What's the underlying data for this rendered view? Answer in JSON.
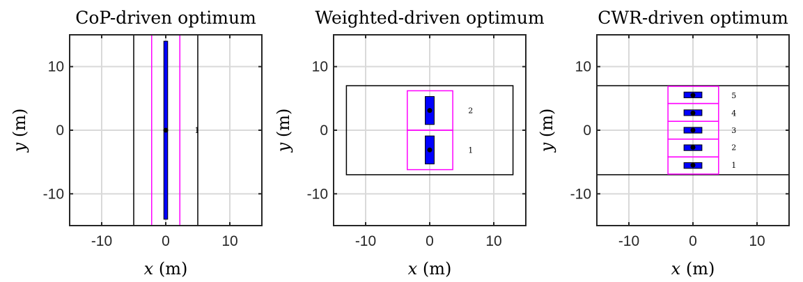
{
  "chart_data": [
    {
      "type": "scatter",
      "title": "CoP-driven optimum",
      "xlabel": {
        "var": "x",
        "unit": "(m)"
      },
      "ylabel": {
        "var": "y",
        "unit": "(m)"
      },
      "xlim": [
        -15,
        15
      ],
      "ylim": [
        -15,
        15
      ],
      "xticks": [
        -10,
        0,
        10
      ],
      "yticks": [
        -10,
        0,
        10
      ],
      "xtick_labels": [
        "-10",
        "0",
        "10"
      ],
      "ytick_labels": [
        "-10",
        "0",
        "10"
      ],
      "grid": true,
      "outer_rect": {
        "x": [
          -5,
          5
        ],
        "y": [
          -15,
          15
        ]
      },
      "rows": [
        {
          "label": "1",
          "cell": {
            "x": [
              -2.2,
              2.2
            ],
            "y": [
              -15,
              15
            ]
          },
          "bar": {
            "x": [
              -0.3,
              0.3
            ],
            "y": [
              -14,
              14
            ]
          },
          "point": [
            0,
            0
          ],
          "label_pos": [
            4.5,
            0
          ]
        }
      ]
    },
    {
      "type": "scatter",
      "title": "Weighted-driven optimum",
      "xlabel": {
        "var": "x",
        "unit": "(m)"
      },
      "ylabel": {
        "var": "y",
        "unit": "(m)"
      },
      "xlim": [
        -15,
        15
      ],
      "ylim": [
        -15,
        15
      ],
      "xticks": [
        -10,
        0,
        10
      ],
      "yticks": [
        -10,
        0,
        10
      ],
      "xtick_labels": [
        "-10",
        "0",
        "10"
      ],
      "ytick_labels": [
        "-10",
        "0",
        "10"
      ],
      "grid": true,
      "outer_rect": {
        "x": [
          -13,
          13
        ],
        "y": [
          -7,
          7
        ]
      },
      "rows": [
        {
          "label": "1",
          "cell": {
            "x": [
              -3.5,
              3.6
            ],
            "y": [
              -6.2,
              0
            ]
          },
          "bar": {
            "x": [
              -0.7,
              0.7
            ],
            "y": [
              -5.3,
              -0.9
            ]
          },
          "point": [
            0,
            -3.1
          ],
          "label_pos": [
            6,
            -3.1
          ]
        },
        {
          "label": "2",
          "cell": {
            "x": [
              -3.5,
              3.6
            ],
            "y": [
              0,
              6.2
            ]
          },
          "bar": {
            "x": [
              -0.7,
              0.7
            ],
            "y": [
              0.9,
              5.3
            ]
          },
          "point": [
            0,
            3.1
          ],
          "label_pos": [
            6,
            3.1
          ]
        }
      ]
    },
    {
      "type": "scatter",
      "title": "CWR-driven optimum",
      "xlabel": {
        "var": "x",
        "unit": "(m)"
      },
      "ylabel": {
        "var": "y",
        "unit": "(m)"
      },
      "xlim": [
        -15,
        15
      ],
      "ylim": [
        -15,
        15
      ],
      "xticks": [
        -10,
        0,
        10
      ],
      "yticks": [
        -10,
        0,
        10
      ],
      "xtick_labels": [
        "-10",
        "0",
        "10"
      ],
      "ytick_labels": [
        "-10",
        "0",
        "10"
      ],
      "grid": true,
      "outer_rect": {
        "x": [
          -15,
          15
        ],
        "y": [
          -7,
          7
        ]
      },
      "rows": [
        {
          "label": "1",
          "cell": {
            "x": [
              -3.9,
              4.0
            ],
            "y": [
              -6.9,
              -4.2
            ]
          },
          "bar": {
            "x": [
              -1.4,
              1.4
            ],
            "y": [
              -6.0,
              -5.1
            ]
          },
          "point": [
            0,
            -5.5
          ],
          "label_pos": [
            6,
            -5.5
          ]
        },
        {
          "label": "2",
          "cell": {
            "x": [
              -3.9,
              4.0
            ],
            "y": [
              -4.2,
              -1.4
            ]
          },
          "bar": {
            "x": [
              -1.4,
              1.4
            ],
            "y": [
              -3.2,
              -2.3
            ]
          },
          "point": [
            0,
            -2.7
          ],
          "label_pos": [
            6,
            -2.7
          ]
        },
        {
          "label": "3",
          "cell": {
            "x": [
              -3.9,
              4.0
            ],
            "y": [
              -1.4,
              1.4
            ]
          },
          "bar": {
            "x": [
              -1.4,
              1.4
            ],
            "y": [
              -0.45,
              0.45
            ]
          },
          "point": [
            0,
            0
          ],
          "label_pos": [
            6,
            0
          ]
        },
        {
          "label": "4",
          "cell": {
            "x": [
              -3.9,
              4.0
            ],
            "y": [
              1.4,
              4.2
            ]
          },
          "bar": {
            "x": [
              -1.4,
              1.4
            ],
            "y": [
              2.3,
              3.2
            ]
          },
          "point": [
            0,
            2.7
          ],
          "label_pos": [
            6,
            2.7
          ]
        },
        {
          "label": "5",
          "cell": {
            "x": [
              -3.9,
              4.0
            ],
            "y": [
              4.2,
              6.9
            ]
          },
          "bar": {
            "x": [
              -1.4,
              1.4
            ],
            "y": [
              5.1,
              6.0
            ]
          },
          "point": [
            0,
            5.5
          ],
          "label_pos": [
            6,
            5.5
          ]
        }
      ]
    }
  ],
  "colors": {
    "outer_rect": "#000000",
    "cell": "#ff00ff",
    "bar_fill": "#0000ff",
    "bar_edge": "#000000",
    "point": "#000000",
    "grid": "#d9d9d9",
    "axes": "#262626"
  }
}
